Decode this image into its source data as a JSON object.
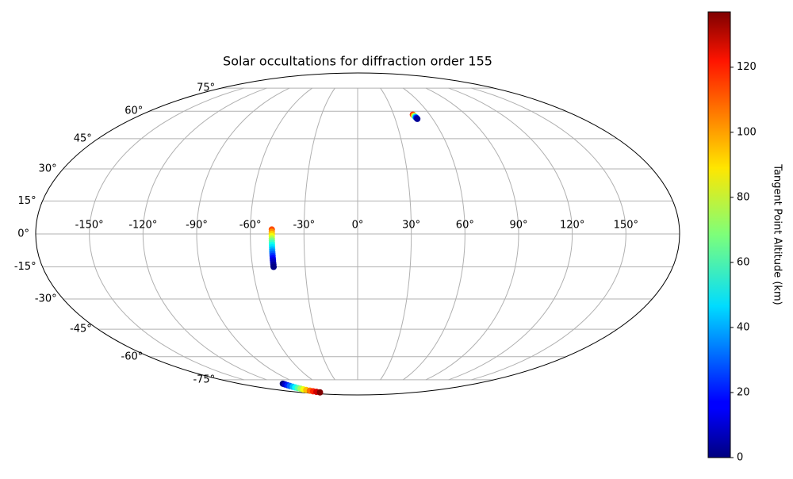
{
  "chart_data": {
    "type": "scatter",
    "projection": "mollweide",
    "title": "Solar occultations for diffraction order 155",
    "xlim": [
      -180,
      180
    ],
    "ylim": [
      -90,
      90
    ],
    "grid": true,
    "xticks": [
      {
        "value": -150,
        "label": "-150°"
      },
      {
        "value": -120,
        "label": "-120°"
      },
      {
        "value": -90,
        "label": "-90°"
      },
      {
        "value": -60,
        "label": "-60°"
      },
      {
        "value": -30,
        "label": "-30°"
      },
      {
        "value": 0,
        "label": "0°"
      },
      {
        "value": 30,
        "label": "30°"
      },
      {
        "value": 60,
        "label": "60°"
      },
      {
        "value": 90,
        "label": "90°"
      },
      {
        "value": 120,
        "label": "120°"
      },
      {
        "value": 150,
        "label": "150°"
      }
    ],
    "yticks": [
      {
        "value": -75,
        "label": "-75°"
      },
      {
        "value": -60,
        "label": "-60°"
      },
      {
        "value": -45,
        "label": "-45°"
      },
      {
        "value": -30,
        "label": "-30°"
      },
      {
        "value": -15,
        "label": "-15°"
      },
      {
        "value": 0,
        "label": "0°"
      },
      {
        "value": 15,
        "label": "15°"
      },
      {
        "value": 30,
        "label": "30°"
      },
      {
        "value": 45,
        "label": "45°"
      },
      {
        "value": 60,
        "label": "60°"
      },
      {
        "value": 75,
        "label": "75°"
      }
    ],
    "x": [
      46,
      46.3,
      46.6,
      46.9,
      47.2,
      47.5,
      47.7,
      -48,
      -48,
      -48,
      -48,
      -48,
      -48,
      -48,
      -48,
      -48,
      -48,
      -48,
      -48,
      -48,
      -48,
      -48,
      -48,
      -48,
      -48,
      -114,
      -114.3,
      -114.6,
      -114.9,
      -115.2,
      -115.5,
      -115.8,
      -116.2,
      -116.5,
      -116.8,
      -117.1,
      -117.4,
      -117.7,
      -118
    ],
    "y": [
      58,
      57.6,
      57.2,
      56.8,
      56.4,
      56,
      55.6,
      2,
      1,
      0,
      -1,
      -2,
      -3,
      -4,
      -5,
      -6,
      -7,
      -8,
      -9,
      -10,
      -11,
      -12,
      -13,
      -14,
      -15,
      -78,
      -78.6,
      -79.2,
      -79.8,
      -80.5,
      -81.1,
      -81.7,
      -82.3,
      -82.9,
      -83.5,
      -84.2,
      -84.8,
      -85.4,
      -86
    ],
    "c": [
      118,
      100,
      80,
      55,
      30,
      12,
      3,
      110,
      100,
      92,
      84,
      76,
      68,
      60,
      54,
      48,
      42,
      36,
      30,
      24,
      18,
      12,
      8,
      4,
      1,
      0,
      10,
      21,
      31,
      42,
      52,
      63,
      73,
      84,
      94,
      105,
      115,
      126,
      137
    ],
    "cmap": "jet",
    "clim": [
      0,
      137
    ],
    "colorbar_label": "Tangent Point Altitude (km)",
    "colorbar_ticks": [
      0,
      20,
      40,
      60,
      80,
      100,
      120
    ]
  }
}
